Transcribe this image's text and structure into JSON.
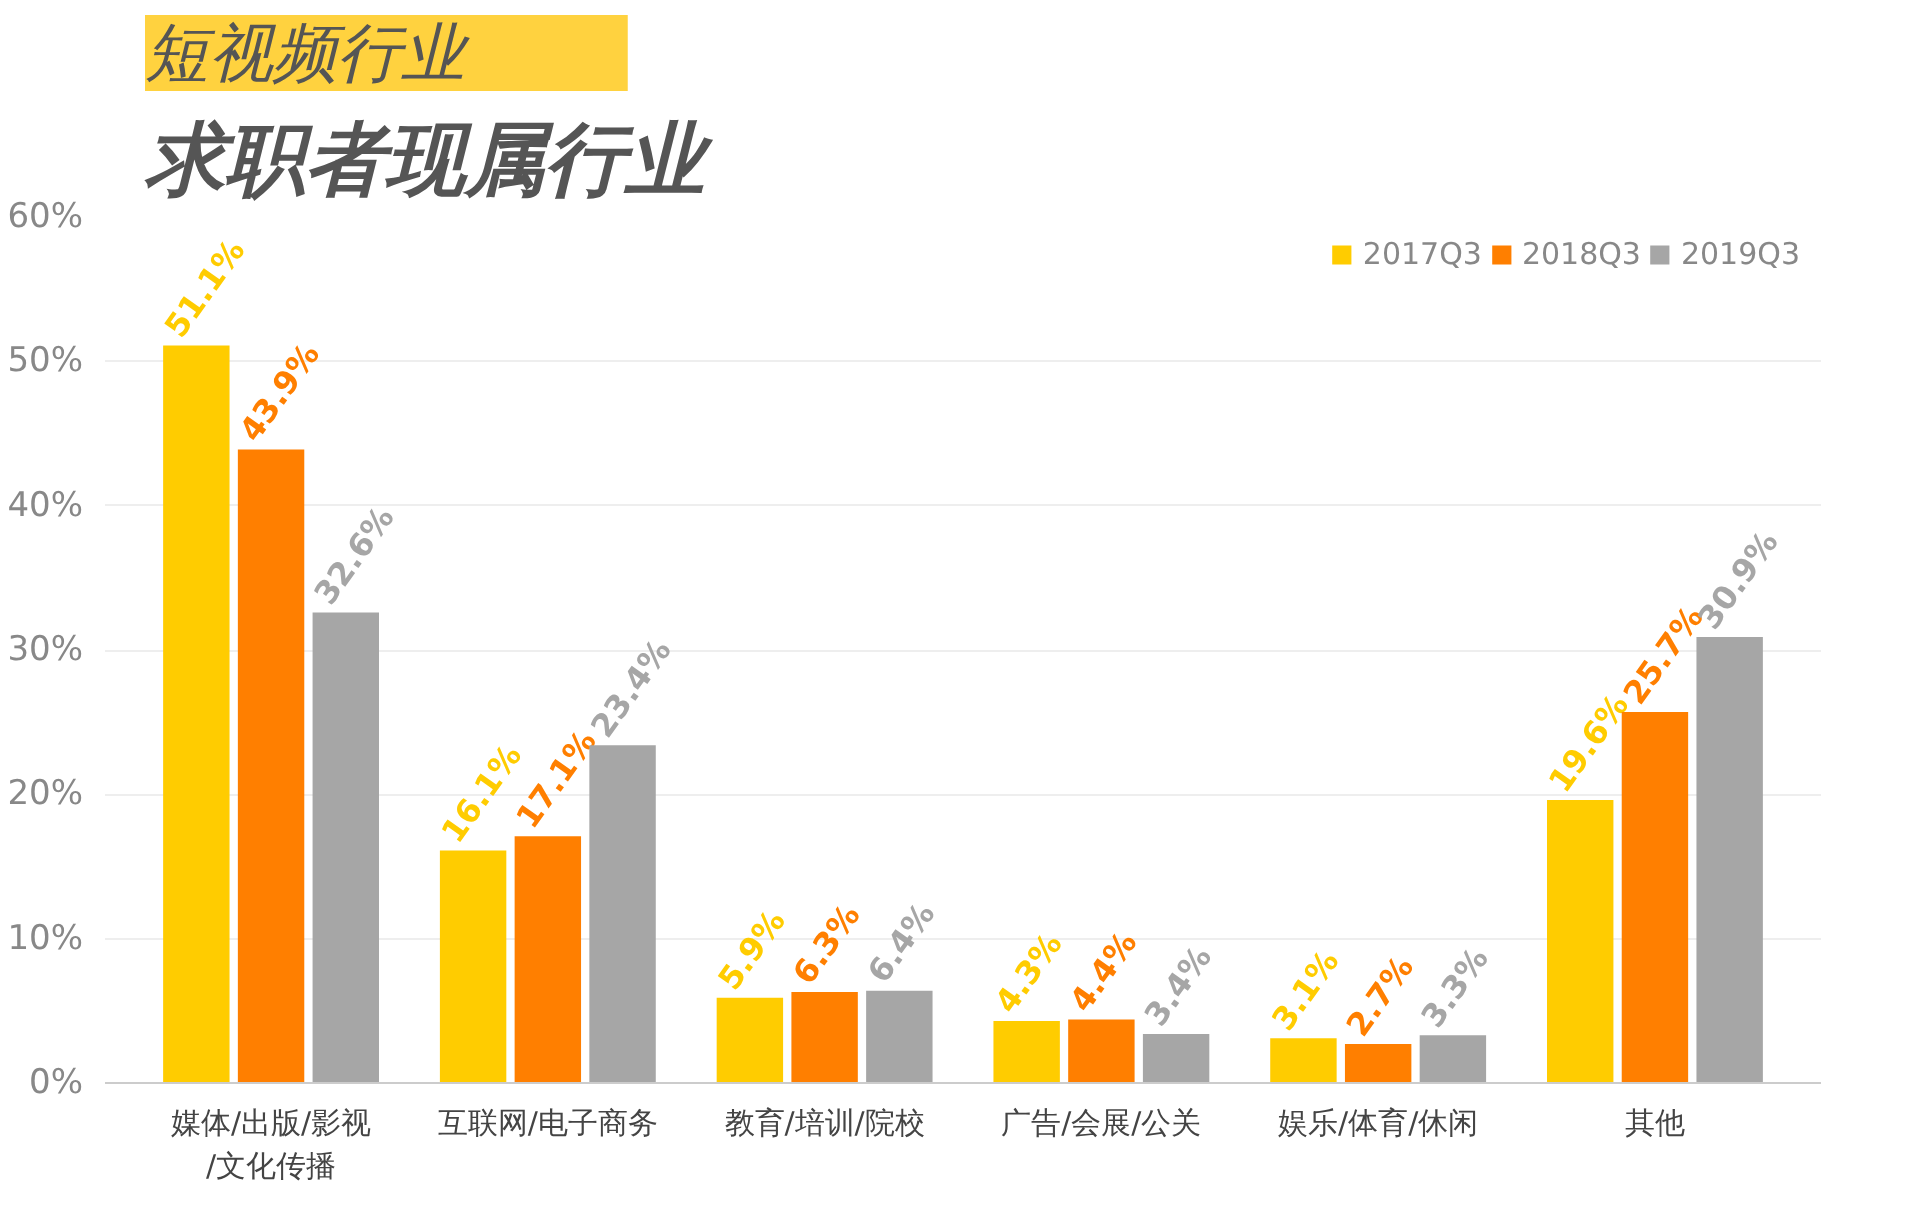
{
  "chart_data": {
    "type": "bar",
    "title": "短视频行业",
    "subtitle": "求职者现属行业",
    "categories": [
      "媒体/出版/影视/文化传播",
      "互联网/电子商务",
      "教育/培训/院校",
      "广告/会展/公关",
      "娱乐/体育/休闲",
      "其他"
    ],
    "series": [
      {
        "name": "2017Q3",
        "color": "#ffcc00",
        "values": [
          51.1,
          16.1,
          5.9,
          4.3,
          3.1,
          19.6
        ],
        "value_labels": [
          "51.1%",
          "16.1%",
          "5.9%",
          "4.3%",
          "3.1%",
          "19.6%"
        ]
      },
      {
        "name": "2018Q3",
        "color": "#ff7f00",
        "values": [
          43.9,
          17.1,
          6.3,
          4.4,
          2.7,
          25.7
        ],
        "value_labels": [
          "43.9%",
          "17.1%",
          "6.3%",
          "4.4%",
          "2.7%",
          "25.7%"
        ]
      },
      {
        "name": "2019Q3",
        "color": "#a6a6a6",
        "values": [
          32.6,
          23.4,
          6.4,
          3.4,
          3.3,
          30.9
        ],
        "value_labels": [
          "32.6%",
          "23.4%",
          "6.4%",
          "3.4%",
          "3.3%",
          "30.9%"
        ]
      }
    ],
    "ylim": [
      0,
      60
    ],
    "yticks": [
      {
        "value": 0,
        "label": "0%"
      },
      {
        "value": 10,
        "label": "10%"
      },
      {
        "value": 20,
        "label": "20%"
      },
      {
        "value": 30,
        "label": "30%"
      },
      {
        "value": 40,
        "label": "40%"
      },
      {
        "value": 50,
        "label": "50%"
      },
      {
        "value": 60,
        "label": "60%"
      }
    ],
    "grid": "y",
    "legend": "top right"
  }
}
